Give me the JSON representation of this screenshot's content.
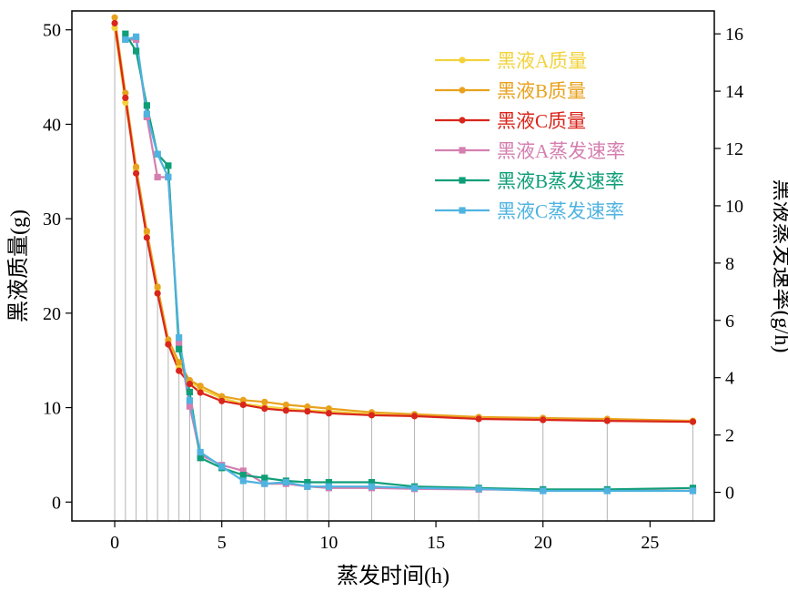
{
  "chart_data": {
    "type": "line",
    "title": "",
    "xlabel": "蒸发时间(h)",
    "ylabel_left": "黑液质量(g)",
    "ylabel_right": "黑液蒸发速率(g/h)",
    "xlim": [
      -2,
      28
    ],
    "ylim_left": [
      -2,
      52
    ],
    "ylim_right": [
      -1,
      16.8
    ],
    "xticks": [
      "0",
      "5",
      "10",
      "15",
      "20",
      "25"
    ],
    "yticks_left": [
      "0",
      "10",
      "20",
      "30",
      "40",
      "50"
    ],
    "yticks_right": [
      "0",
      "2",
      "4",
      "6",
      "8",
      "10",
      "12",
      "14",
      "16"
    ],
    "legend_position": "top-right",
    "drop_lines_x": [
      0,
      0.5,
      1,
      1.5,
      2,
      2.5,
      3,
      3.5,
      4,
      5,
      6,
      7,
      8,
      9,
      10,
      12,
      14,
      17,
      20,
      23,
      27
    ],
    "series": [
      {
        "name": "黑液A质量",
        "axis": "left",
        "marker": "circle",
        "color": "#f2d23c",
        "x": [
          0,
          0.5,
          1,
          1.5,
          2,
          2.5,
          3,
          3.5,
          4,
          5,
          6,
          7,
          8,
          9,
          10,
          12,
          14,
          17,
          20,
          23,
          27
        ],
        "values": [
          50.2,
          42.3,
          35.2,
          28.5,
          22.6,
          17.0,
          14.3,
          12.8,
          12.0,
          11.0,
          10.4,
          10.1,
          9.9,
          9.7,
          9.6,
          9.3,
          9.1,
          8.9,
          8.8,
          8.7,
          8.5
        ]
      },
      {
        "name": "黑液B质量",
        "axis": "left",
        "marker": "circle",
        "color": "#e8a21e",
        "x": [
          0,
          0.5,
          1,
          1.5,
          2,
          2.5,
          3,
          3.5,
          4,
          5,
          6,
          7,
          8,
          9,
          10,
          12,
          14,
          17,
          20,
          23,
          27
        ],
        "values": [
          51.3,
          43.3,
          35.5,
          28.7,
          22.8,
          17.2,
          14.8,
          12.9,
          12.3,
          11.2,
          10.8,
          10.6,
          10.3,
          10.1,
          9.9,
          9.5,
          9.3,
          9.0,
          8.9,
          8.8,
          8.6
        ]
      },
      {
        "name": "黑液C质量",
        "axis": "left",
        "marker": "circle",
        "color": "#d9261c",
        "x": [
          0,
          0.5,
          1,
          1.5,
          2,
          2.5,
          3,
          3.5,
          4,
          5,
          6,
          7,
          8,
          9,
          10,
          12,
          14,
          17,
          20,
          23,
          27
        ],
        "values": [
          50.7,
          42.8,
          34.8,
          28.0,
          22.1,
          16.7,
          13.9,
          12.5,
          11.6,
          10.7,
          10.3,
          9.9,
          9.7,
          9.6,
          9.4,
          9.2,
          9.1,
          8.8,
          8.7,
          8.6,
          8.5
        ]
      },
      {
        "name": "黑液A蒸发速率",
        "axis": "right",
        "marker": "square",
        "color": "#d47fb0",
        "x": [
          0.5,
          1,
          1.5,
          2,
          2.5,
          3,
          3.5,
          4,
          5,
          6,
          7,
          8,
          9,
          10,
          12,
          14,
          17,
          20,
          23,
          27
        ],
        "values": [
          15.8,
          15.8,
          13.1,
          11.0,
          11.0,
          5.2,
          3.0,
          1.3,
          0.95,
          0.75,
          0.3,
          0.3,
          0.2,
          0.15,
          0.15,
          0.12,
          0.1,
          0.08,
          0.06,
          0.06
        ]
      },
      {
        "name": "黑液B蒸发速率",
        "axis": "right",
        "marker": "square",
        "color": "#0f9e78",
        "x": [
          0.5,
          1,
          1.5,
          2,
          2.5,
          3,
          3.5,
          4,
          5,
          6,
          7,
          8,
          9,
          10,
          12,
          14,
          17,
          20,
          23,
          27
        ],
        "values": [
          16.0,
          15.4,
          13.5,
          11.8,
          11.4,
          5.0,
          3.5,
          1.2,
          0.85,
          0.6,
          0.5,
          0.4,
          0.35,
          0.35,
          0.35,
          0.2,
          0.15,
          0.1,
          0.1,
          0.15
        ]
      },
      {
        "name": "黑液C蒸发速率",
        "axis": "right",
        "marker": "square",
        "color": "#4fb3e0",
        "x": [
          0.5,
          1,
          1.5,
          2,
          2.5,
          3,
          3.5,
          4,
          5,
          6,
          7,
          8,
          9,
          10,
          12,
          14,
          17,
          20,
          23,
          27
        ],
        "values": [
          15.8,
          15.9,
          13.2,
          11.8,
          11.0,
          5.4,
          3.2,
          1.4,
          0.9,
          0.4,
          0.3,
          0.35,
          0.2,
          0.2,
          0.2,
          0.15,
          0.12,
          0.05,
          0.05,
          0.05
        ]
      }
    ]
  }
}
